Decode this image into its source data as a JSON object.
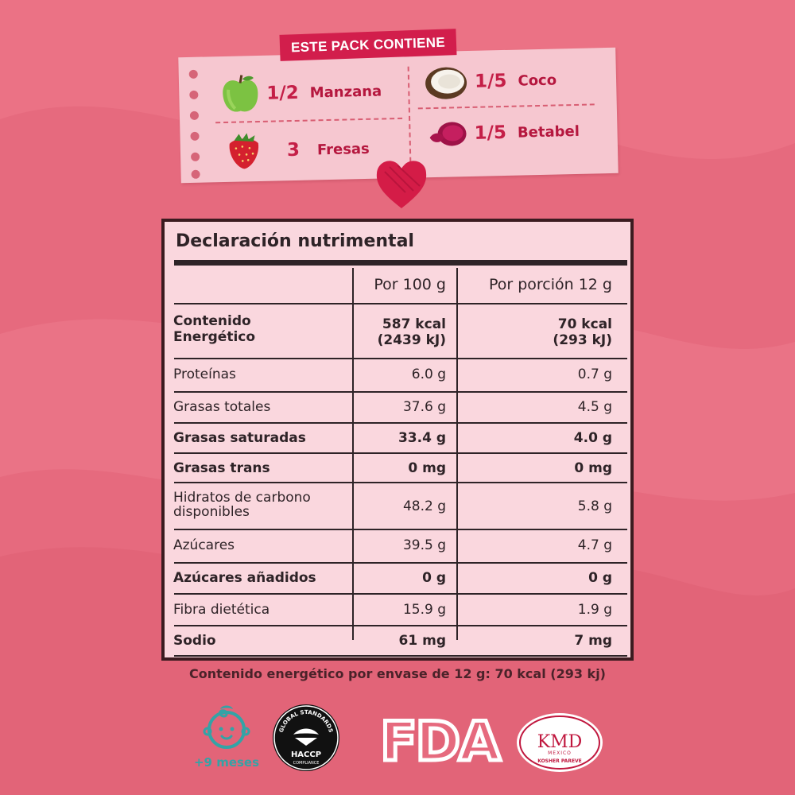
{
  "pack": {
    "title": "ESTE PACK CONTIENE",
    "items": [
      {
        "qty": "1/2",
        "name": "Manzana",
        "icon": "apple-icon"
      },
      {
        "qty": "1/5",
        "name": "Coco",
        "icon": "coconut-icon"
      },
      {
        "qty": "3",
        "name": "Fresas",
        "icon": "strawberry-icon"
      },
      {
        "qty": "1/5",
        "name": "Betabel",
        "icon": "beet-icon"
      }
    ]
  },
  "nutrition": {
    "title": "Declaración nutrimental",
    "headers": [
      "",
      "Por 100 g",
      "Por porción 12 g"
    ],
    "rows": [
      {
        "label": "Contenido Energético",
        "per100": "587 kcal (2439 kJ)",
        "perPortion": "70 kcal (293 kJ)",
        "bold": true
      },
      {
        "label": "Proteínas",
        "per100": "6.0 g",
        "perPortion": "0.7 g",
        "bold": false
      },
      {
        "label": "Grasas totales",
        "per100": "37.6 g",
        "perPortion": "4.5 g",
        "bold": false
      },
      {
        "label": "Grasas saturadas",
        "per100": "33.4 g",
        "perPortion": "4.0 g",
        "bold": true
      },
      {
        "label": "Grasas trans",
        "per100": "0 mg",
        "perPortion": "0 mg",
        "bold": true
      },
      {
        "label": "Hidratos de carbono disponibles",
        "per100": "48.2 g",
        "perPortion": "5.8 g",
        "bold": false
      },
      {
        "label": "Azúcares",
        "per100": "39.5 g",
        "perPortion": "4.7 g",
        "bold": false
      },
      {
        "label": "Azúcares añadidos",
        "per100": "0 g",
        "perPortion": "0 g",
        "bold": true
      },
      {
        "label": "Fibra dietética",
        "per100": "15.9 g",
        "perPortion": "1.9 g",
        "bold": false
      },
      {
        "label": "Sodio",
        "per100": "61 mg",
        "perPortion": "7 mg",
        "bold": true
      }
    ],
    "footer": "Contenido energético por envase de 12 g: 70 kcal (293 kj)"
  },
  "badges": {
    "age": {
      "label": "+9 meses",
      "icon": "baby-icon"
    },
    "haccp": {
      "top": "GLOBAL STANDARDS",
      "main": "HACCP",
      "bottom": "COMPLIANCE"
    },
    "fda": {
      "text": "FDA"
    },
    "kmd": {
      "main": "KMD",
      "sub": "MEXICO",
      "bottom": "KOSHER PAREVE"
    }
  },
  "colors": {
    "background": "#e66a7e",
    "card": "#f6c7d0",
    "accent": "#d21e4c",
    "tableBg": "#fad7de",
    "tableLine": "#2e2327",
    "teal": "#34a3a6"
  }
}
